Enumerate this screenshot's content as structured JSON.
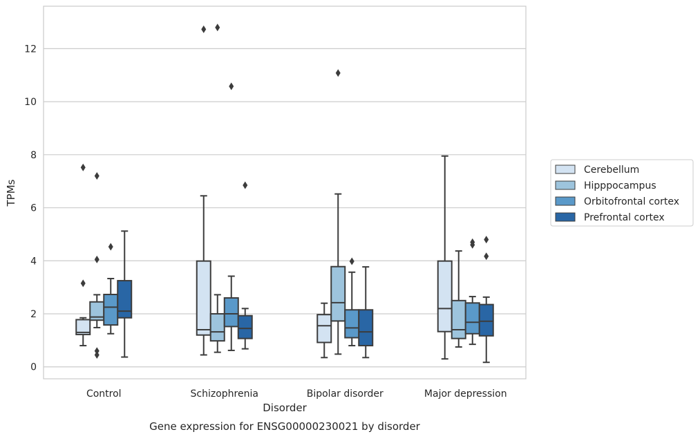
{
  "chart_data": {
    "type": "box",
    "caption": "Gene expression for ENSG00000230021 by disorder",
    "xlabel": "Disorder",
    "ylabel": "TPMs",
    "ylim": [
      -0.45,
      13.6
    ],
    "yticks": [
      0,
      2,
      4,
      6,
      8,
      10,
      12
    ],
    "grid": "horizontal",
    "legend_position": "right",
    "categories": [
      "Control",
      "Schizophrenia",
      "Bipolar disorder",
      "Major depression"
    ],
    "series": [
      {
        "name": "Cerebellum",
        "color": "#d3e3f2",
        "boxes": [
          {
            "whisker_low": 0.8,
            "q1": 1.22,
            "median": 1.3,
            "q3": 1.78,
            "whisker_high": 1.85,
            "outliers": [
              7.52,
              3.15
            ]
          },
          {
            "whisker_low": 0.45,
            "q1": 1.2,
            "median": 1.4,
            "q3": 3.99,
            "whisker_high": 6.45,
            "outliers": [
              12.73
            ]
          },
          {
            "whisker_low": 0.35,
            "q1": 0.92,
            "median": 1.55,
            "q3": 1.97,
            "whisker_high": 2.4,
            "outliers": []
          },
          {
            "whisker_low": 0.3,
            "q1": 1.33,
            "median": 2.2,
            "q3": 3.99,
            "whisker_high": 7.95,
            "outliers": []
          }
        ]
      },
      {
        "name": "Hipppocampus",
        "color": "#9dc4dd",
        "boxes": [
          {
            "whisker_low": 1.48,
            "q1": 1.76,
            "median": 1.88,
            "q3": 2.45,
            "whisker_high": 2.72,
            "outliers": [
              7.2,
              4.05,
              0.6,
              0.45
            ]
          },
          {
            "whisker_low": 0.55,
            "q1": 0.98,
            "median": 1.32,
            "q3": 2.0,
            "whisker_high": 2.72,
            "outliers": [
              12.8
            ]
          },
          {
            "whisker_low": 0.48,
            "q1": 1.73,
            "median": 2.42,
            "q3": 3.78,
            "whisker_high": 6.52,
            "outliers": [
              11.08
            ]
          },
          {
            "whisker_low": 0.75,
            "q1": 1.07,
            "median": 1.4,
            "q3": 2.5,
            "whisker_high": 4.37,
            "outliers": []
          }
        ]
      },
      {
        "name": "Orbitofrontal cortex",
        "color": "#5a99c9",
        "boxes": [
          {
            "whisker_low": 1.25,
            "q1": 1.58,
            "median": 2.25,
            "q3": 2.73,
            "whisker_high": 3.33,
            "outliers": [
              4.53
            ]
          },
          {
            "whisker_low": 0.62,
            "q1": 1.52,
            "median": 2.0,
            "q3": 2.6,
            "whisker_high": 3.42,
            "outliers": [
              10.58
            ]
          },
          {
            "whisker_low": 0.8,
            "q1": 1.1,
            "median": 1.47,
            "q3": 2.15,
            "whisker_high": 3.57,
            "outliers": [
              3.98
            ]
          },
          {
            "whisker_low": 0.85,
            "q1": 1.25,
            "median": 1.68,
            "q3": 2.41,
            "whisker_high": 2.65,
            "outliers": [
              4.7,
              4.6
            ]
          }
        ]
      },
      {
        "name": "Prefrontal cortex",
        "color": "#2966a5",
        "boxes": [
          {
            "whisker_low": 0.37,
            "q1": 1.85,
            "median": 2.1,
            "q3": 3.25,
            "whisker_high": 5.12,
            "outliers": []
          },
          {
            "whisker_low": 0.68,
            "q1": 1.07,
            "median": 1.45,
            "q3": 1.93,
            "whisker_high": 2.2,
            "outliers": [
              6.85
            ]
          },
          {
            "whisker_low": 0.35,
            "q1": 0.8,
            "median": 1.32,
            "q3": 2.15,
            "whisker_high": 3.77,
            "outliers": []
          },
          {
            "whisker_low": 0.17,
            "q1": 1.17,
            "median": 1.72,
            "q3": 2.35,
            "whisker_high": 2.63,
            "outliers": [
              4.8,
              4.17
            ]
          }
        ]
      }
    ]
  }
}
